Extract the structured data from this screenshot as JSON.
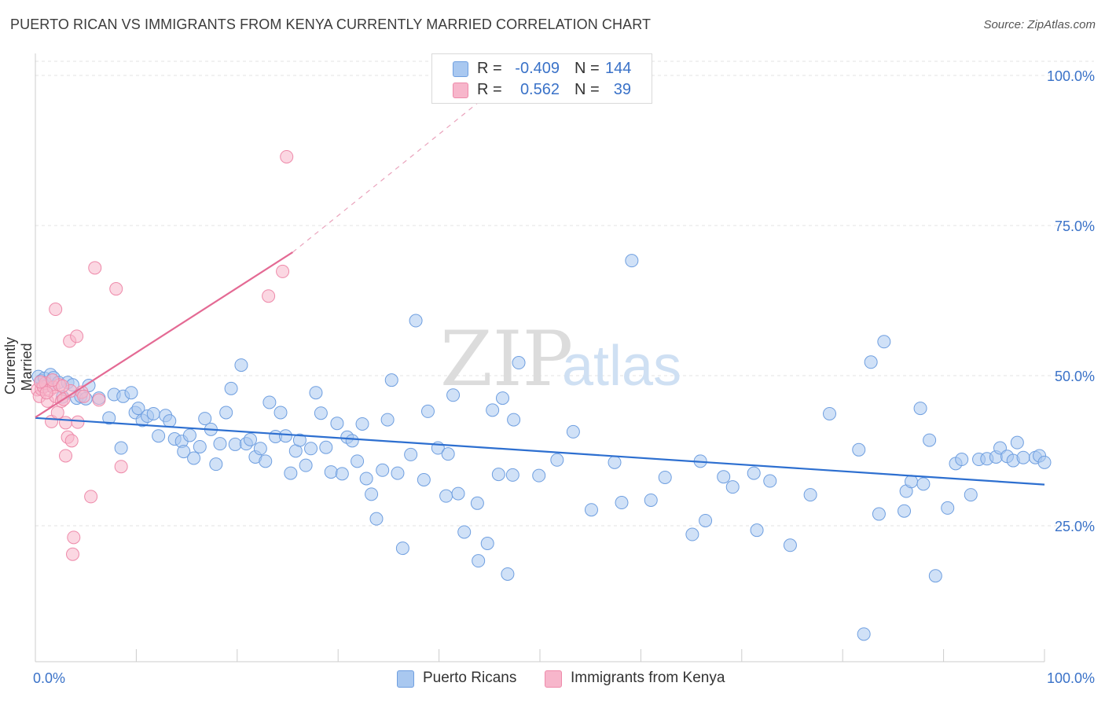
{
  "title": "PUERTO RICAN VS IMMIGRANTS FROM KENYA CURRENTLY MARRIED CORRELATION CHART",
  "source": "Source: ZipAtlas.com",
  "watermark": {
    "zip": "ZIP",
    "atlas": "atlas"
  },
  "legend": {
    "rows": [
      {
        "r_label": "R =",
        "r_value": "-0.409",
        "n_label": "N =",
        "n_value": "144",
        "color": "#a9c8f0"
      },
      {
        "r_label": "R =",
        "r_value": "0.562",
        "n_label": "N =",
        "n_value": "39",
        "color": "#f7b6cb"
      }
    ]
  },
  "bottom_legend": [
    {
      "label": "Puerto Ricans",
      "color": "#a9c8f0"
    },
    {
      "label": "Immigrants from Kenya",
      "color": "#f7b6cb"
    }
  ],
  "chart_data": {
    "type": "scatter",
    "title": "PUERTO RICAN VS IMMIGRANTS FROM KENYA CURRENTLY MARRIED CORRELATION CHART",
    "xlabel": "",
    "ylabel": "Currently Married",
    "xlim": [
      0,
      100
    ],
    "ylim": [
      0,
      100
    ],
    "x_tick_labels": [
      "0.0%",
      "100.0%"
    ],
    "y_tick_labels": [
      "25.0%",
      "50.0%",
      "75.0%",
      "100.0%"
    ],
    "y_ticks": [
      25,
      50,
      75,
      100
    ],
    "grid": true,
    "legend_position": "top-center",
    "series": [
      {
        "name": "Puerto Ricans",
        "color": "#6f9fe0",
        "fill": "#a9c8f0",
        "trend": {
          "x0": 0,
          "y0": 40.6,
          "x1": 100,
          "y1": 29.5,
          "color": "#2d6fd0"
        },
        "points": [
          [
            0.3,
            47.5
          ],
          [
            0.6,
            46.8
          ],
          [
            0.9,
            47.2
          ],
          [
            1.2,
            46.0
          ],
          [
            1.5,
            47.8
          ],
          [
            1.8,
            47.3
          ],
          [
            2.3,
            46.5
          ],
          [
            2.7,
            44.1
          ],
          [
            3.2,
            46.5
          ],
          [
            3.7,
            46.1
          ],
          [
            4.1,
            43.9
          ],
          [
            4.5,
            44.2
          ],
          [
            5.0,
            43.8
          ],
          [
            5.3,
            46.0
          ],
          [
            6.3,
            43.9
          ],
          [
            7.3,
            40.6
          ],
          [
            7.8,
            44.5
          ],
          [
            8.5,
            35.6
          ],
          [
            8.7,
            44.2
          ],
          [
            9.5,
            44.8
          ],
          [
            9.9,
            41.5
          ],
          [
            10.2,
            42.2
          ],
          [
            10.6,
            40.2
          ],
          [
            11.1,
            40.9
          ],
          [
            11.7,
            41.3
          ],
          [
            12.2,
            37.6
          ],
          [
            12.9,
            41.0
          ],
          [
            13.3,
            40.1
          ],
          [
            13.8,
            37.1
          ],
          [
            14.5,
            36.7
          ],
          [
            14.7,
            35.0
          ],
          [
            15.3,
            37.7
          ],
          [
            15.7,
            33.9
          ],
          [
            16.3,
            35.8
          ],
          [
            16.8,
            40.5
          ],
          [
            17.4,
            38.7
          ],
          [
            17.9,
            32.9
          ],
          [
            18.3,
            36.3
          ],
          [
            18.9,
            41.5
          ],
          [
            19.4,
            45.5
          ],
          [
            19.8,
            36.2
          ],
          [
            20.4,
            49.4
          ],
          [
            20.9,
            36.3
          ],
          [
            21.3,
            37.0
          ],
          [
            21.8,
            34.1
          ],
          [
            22.3,
            35.5
          ],
          [
            22.8,
            33.4
          ],
          [
            23.2,
            43.2
          ],
          [
            23.8,
            37.5
          ],
          [
            24.3,
            41.5
          ],
          [
            24.8,
            37.6
          ],
          [
            25.3,
            31.4
          ],
          [
            25.8,
            35.1
          ],
          [
            26.2,
            36.9
          ],
          [
            26.8,
            32.7
          ],
          [
            27.3,
            35.5
          ],
          [
            27.8,
            44.8
          ],
          [
            28.3,
            41.4
          ],
          [
            28.8,
            35.7
          ],
          [
            29.3,
            31.6
          ],
          [
            29.9,
            39.7
          ],
          [
            30.4,
            31.3
          ],
          [
            30.9,
            37.4
          ],
          [
            31.4,
            36.8
          ],
          [
            31.9,
            33.4
          ],
          [
            32.4,
            39.6
          ],
          [
            32.8,
            30.5
          ],
          [
            33.3,
            27.9
          ],
          [
            33.8,
            23.8
          ],
          [
            34.4,
            31.9
          ],
          [
            34.9,
            40.3
          ],
          [
            35.3,
            46.9
          ],
          [
            35.9,
            31.4
          ],
          [
            36.4,
            18.9
          ],
          [
            37.2,
            34.5
          ],
          [
            37.7,
            56.8
          ],
          [
            38.5,
            30.3
          ],
          [
            38.9,
            41.7
          ],
          [
            39.9,
            35.6
          ],
          [
            40.7,
            27.6
          ],
          [
            40.9,
            34.6
          ],
          [
            41.4,
            44.4
          ],
          [
            41.9,
            28.0
          ],
          [
            42.5,
            21.6
          ],
          [
            43.9,
            16.8
          ],
          [
            43.8,
            26.4
          ],
          [
            44.8,
            19.7
          ],
          [
            45.3,
            41.9
          ],
          [
            45.9,
            31.2
          ],
          [
            46.3,
            43.9
          ],
          [
            46.8,
            14.6
          ],
          [
            47.3,
            31.1
          ],
          [
            47.4,
            40.3
          ],
          [
            47.9,
            49.8
          ],
          [
            49.9,
            31.0
          ],
          [
            51.7,
            33.6
          ],
          [
            53.3,
            38.3
          ],
          [
            55.1,
            25.3
          ],
          [
            57.4,
            33.2
          ],
          [
            58.1,
            26.5
          ],
          [
            59.1,
            66.8
          ],
          [
            61.0,
            26.9
          ],
          [
            62.4,
            30.7
          ],
          [
            65.1,
            21.2
          ],
          [
            65.9,
            33.4
          ],
          [
            66.4,
            23.5
          ],
          [
            68.2,
            30.8
          ],
          [
            69.1,
            29.1
          ],
          [
            71.2,
            31.4
          ],
          [
            71.5,
            21.9
          ],
          [
            72.8,
            30.1
          ],
          [
            74.8,
            19.4
          ],
          [
            76.8,
            27.8
          ],
          [
            78.7,
            41.3
          ],
          [
            81.6,
            35.3
          ],
          [
            82.1,
            4.6
          ],
          [
            82.8,
            49.9
          ],
          [
            83.6,
            24.6
          ],
          [
            84.1,
            53.3
          ],
          [
            86.1,
            25.1
          ],
          [
            86.3,
            28.4
          ],
          [
            86.8,
            30.0
          ],
          [
            87.7,
            42.2
          ],
          [
            88.0,
            29.6
          ],
          [
            88.6,
            36.9
          ],
          [
            89.2,
            14.3
          ],
          [
            90.4,
            25.6
          ],
          [
            91.2,
            33.0
          ],
          [
            91.8,
            33.7
          ],
          [
            92.7,
            27.8
          ],
          [
            93.5,
            33.7
          ],
          [
            94.3,
            33.8
          ],
          [
            95.2,
            34.1
          ],
          [
            95.6,
            35.6
          ],
          [
            96.3,
            34.2
          ],
          [
            96.9,
            33.5
          ],
          [
            97.3,
            36.5
          ],
          [
            97.9,
            34.0
          ],
          [
            99.1,
            34.0
          ],
          [
            99.5,
            34.3
          ],
          [
            100.0,
            33.2
          ]
        ]
      },
      {
        "name": "Immigrants from Kenya",
        "color": "#ee8aaa",
        "fill": "#f7b6cb",
        "trend": {
          "x0": 0,
          "y0": 40.7,
          "x1": 25.5,
          "y1": 68.2,
          "dash_to_x": 46,
          "dash_to_y": 96,
          "color": "#e46a94"
        },
        "points": [
          [
            0.2,
            45.3
          ],
          [
            0.4,
            44.2
          ],
          [
            0.6,
            45.4
          ],
          [
            0.8,
            45.8
          ],
          [
            1.0,
            46.4
          ],
          [
            1.2,
            43.4
          ],
          [
            1.4,
            45.2
          ],
          [
            1.6,
            40.0
          ],
          [
            1.8,
            45.7
          ],
          [
            2.0,
            44.2
          ],
          [
            2.2,
            41.5
          ],
          [
            2.0,
            58.7
          ],
          [
            2.4,
            46.1
          ],
          [
            2.6,
            43.4
          ],
          [
            2.8,
            43.7
          ],
          [
            3.0,
            39.8
          ],
          [
            3.2,
            37.4
          ],
          [
            3.0,
            34.3
          ],
          [
            3.5,
            45.1
          ],
          [
            3.4,
            53.4
          ],
          [
            3.6,
            36.8
          ],
          [
            3.8,
            20.7
          ],
          [
            3.7,
            17.9
          ],
          [
            4.1,
            54.2
          ],
          [
            4.2,
            39.9
          ],
          [
            4.6,
            44.9
          ],
          [
            4.8,
            44.2
          ],
          [
            5.5,
            27.5
          ],
          [
            5.9,
            65.6
          ],
          [
            6.3,
            43.6
          ],
          [
            8.0,
            62.1
          ],
          [
            8.5,
            32.5
          ],
          [
            23.1,
            60.9
          ],
          [
            24.5,
            65.0
          ],
          [
            24.9,
            84.1
          ],
          [
            0.5,
            46.6
          ],
          [
            1.1,
            44.8
          ],
          [
            1.7,
            46.9
          ],
          [
            2.7,
            45.9
          ]
        ]
      }
    ]
  }
}
